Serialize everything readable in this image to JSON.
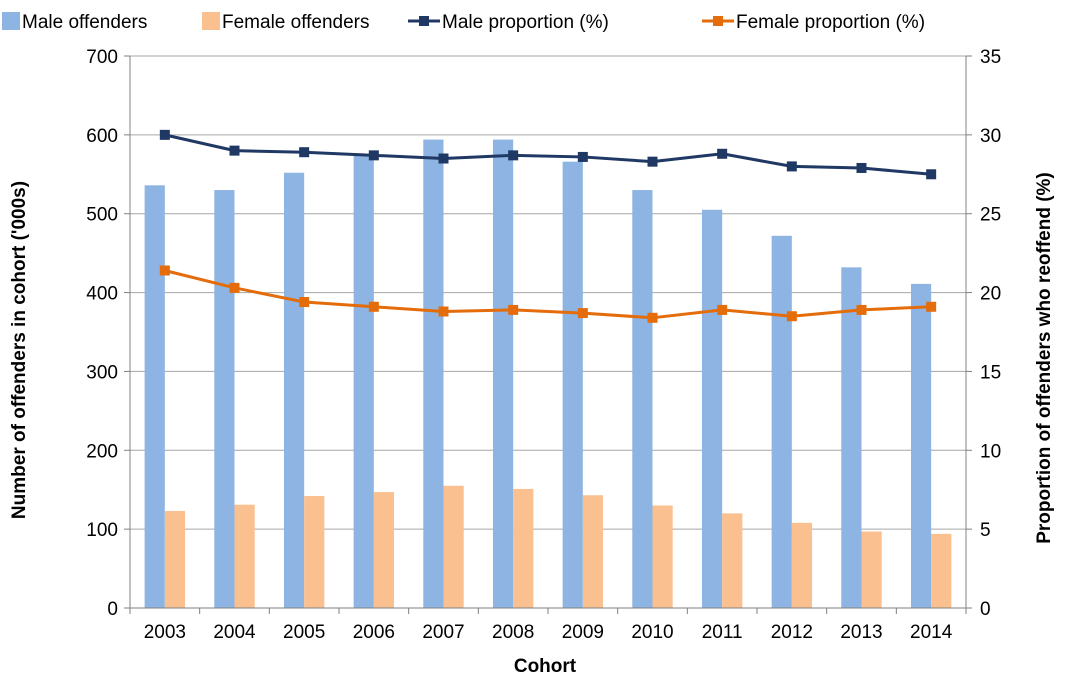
{
  "chart_data": {
    "type": "bar",
    "categories": [
      "2003",
      "2004",
      "2005",
      "2006",
      "2007",
      "2008",
      "2009",
      "2010",
      "2011",
      "2012",
      "2013",
      "2014"
    ],
    "series": [
      {
        "name": "Male offenders",
        "kind": "bar",
        "axis": "left",
        "color": "#8DB4E2",
        "values": [
          536,
          530,
          552,
          575,
          594,
          594,
          566,
          530,
          505,
          472,
          432,
          411
        ]
      },
      {
        "name": "Female offenders",
        "kind": "bar",
        "axis": "left",
        "color": "#FAC090",
        "values": [
          123,
          131,
          142,
          147,
          155,
          151,
          143,
          130,
          120,
          108,
          97,
          94
        ]
      },
      {
        "name": "Male proportion (%)",
        "kind": "line",
        "axis": "right",
        "color": "#1F3864",
        "values": [
          30.0,
          29.0,
          28.9,
          28.7,
          28.5,
          28.7,
          28.6,
          28.3,
          28.8,
          28.0,
          27.9,
          27.5
        ]
      },
      {
        "name": "Female proportion (%)",
        "kind": "line",
        "axis": "right",
        "color": "#E46C0A",
        "values": [
          21.4,
          20.3,
          19.4,
          19.1,
          18.8,
          18.9,
          18.7,
          18.4,
          18.9,
          18.5,
          18.9,
          19.1
        ]
      }
    ],
    "xlabel": "Cohort",
    "ylabel": "Number of offenders in cohort ('000s)",
    "y2label": "Proportion of offenders who reoffend (%)",
    "ylim": [
      0,
      700
    ],
    "y2lim": [
      0,
      35
    ],
    "yticks": [
      "0",
      "100",
      "200",
      "300",
      "400",
      "500",
      "600",
      "700"
    ],
    "y2ticks": [
      "0",
      "5",
      "10",
      "15",
      "20",
      "25",
      "30",
      "35"
    ],
    "grid": true,
    "legend": "top"
  }
}
